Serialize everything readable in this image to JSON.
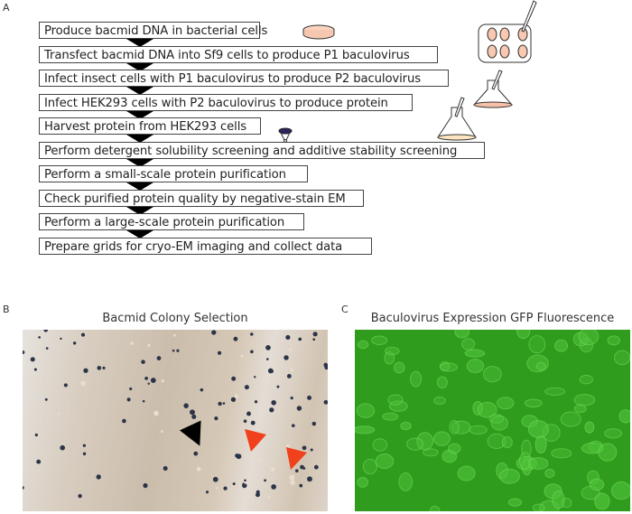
{
  "panel_a": {
    "label": "A",
    "steps": [
      "Produce bacmid DNA in bacterial cells",
      "Transfect bacmid DNA into Sf9 cells to produce P1 baculovirus",
      "Infect insect cells with P1 baculovirus to produce P2 baculovirus",
      "Infect HEK293 cells with P2 baculovirus to produce protein",
      "Harvest protein from HEK293 cells",
      "Perform detergent solubility screening and additive stability screening",
      "Perform a small-scale protein purification",
      "Check purified protein quality by negative-stain EM",
      "Perform a large-scale protein purification",
      "Prepare grids for cryo-EM imaging and collect data"
    ],
    "icons": [
      "petri-dish-icon",
      "well-plate-icon",
      "flask-icon",
      "flask-icon",
      "centrifuge-tube-icon"
    ]
  },
  "panel_b": {
    "label": "B",
    "title": "Bacmid Colony Selection",
    "arrow_colors": [
      "#000000",
      "#f0401c",
      "#f0401c"
    ]
  },
  "panel_c": {
    "label": "C",
    "title": "Baculovirus Expression GFP Fluorescence",
    "color": "#2f9c1e"
  }
}
